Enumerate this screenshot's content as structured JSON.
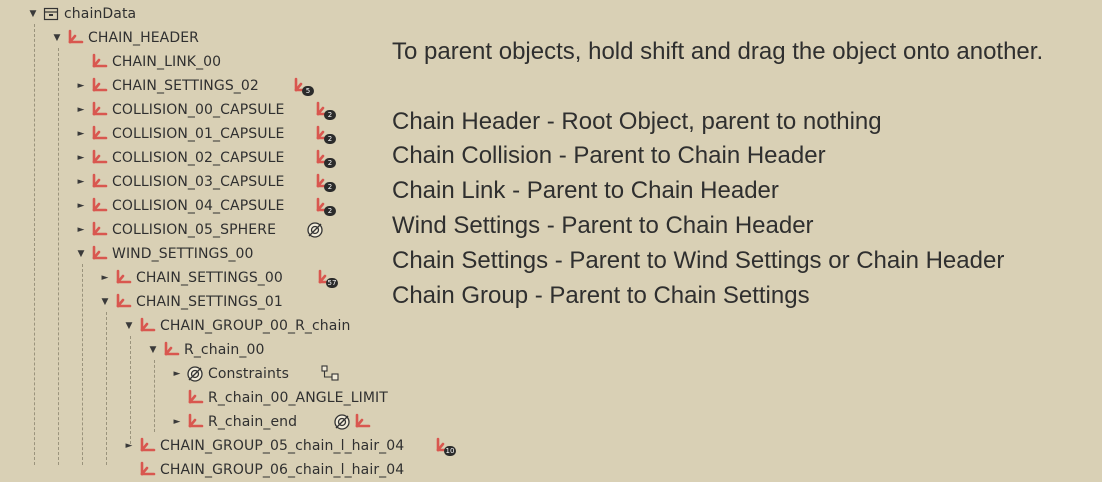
{
  "tree": {
    "root_label": "chainData",
    "rows": [
      {
        "label": "CHAIN_HEADER",
        "expander": "open"
      },
      {
        "label": "CHAIN_LINK_00",
        "expander": "none"
      },
      {
        "label": "CHAIN_SETTINGS_02",
        "expander": "closed",
        "badge": "5"
      },
      {
        "label": "COLLISION_00_CAPSULE",
        "expander": "closed",
        "badge": "2"
      },
      {
        "label": "COLLISION_01_CAPSULE",
        "expander": "closed",
        "badge": "2"
      },
      {
        "label": "COLLISION_02_CAPSULE",
        "expander": "closed",
        "badge": "2"
      },
      {
        "label": "COLLISION_03_CAPSULE",
        "expander": "closed",
        "badge": "2"
      },
      {
        "label": "COLLISION_04_CAPSULE",
        "expander": "closed",
        "badge": "2"
      },
      {
        "label": "COLLISION_05_SPHERE",
        "expander": "closed",
        "badge_icon": "constraint-icon"
      },
      {
        "label": "WIND_SETTINGS_00",
        "expander": "open"
      },
      {
        "label": "CHAIN_SETTINGS_00",
        "expander": "closed",
        "badge": "57"
      },
      {
        "label": "CHAIN_SETTINGS_01",
        "expander": "open"
      },
      {
        "label": "CHAIN_GROUP_00_R_chain",
        "expander": "open"
      },
      {
        "label": "R_chain_00",
        "expander": "open"
      },
      {
        "label": "Constraints",
        "expander": "closed",
        "icon": "constraint-icon",
        "badge_icon": "bone-constraint-icon"
      },
      {
        "label": "R_chain_00_ANGLE_LIMIT",
        "expander": "none"
      },
      {
        "label": "R_chain_end",
        "expander": "closed",
        "badge_icon": "constraint-and-empty-icons"
      },
      {
        "label": "CHAIN_GROUP_05_chain_l_hair_04",
        "expander": "closed",
        "badge": "10"
      },
      {
        "label": "CHAIN_GROUP_06_chain_l_hair_04",
        "expander": "none"
      }
    ]
  },
  "help": {
    "intro": "To parent objects, hold shift and drag the object onto another.",
    "lines": [
      "Chain Header - Root Object, parent to nothing",
      "Chain Collision - Parent to Chain Header",
      "Chain Link - Parent to Chain Header",
      "Wind Settings - Parent to Chain Header",
      "Chain Settings - Parent to Wind Settings or Chain Header",
      "Chain Group - Parent to Chain Settings"
    ]
  },
  "colors": {
    "background": "#d9d0b5",
    "empty_icon": "#d9574f",
    "text": "#303030"
  }
}
